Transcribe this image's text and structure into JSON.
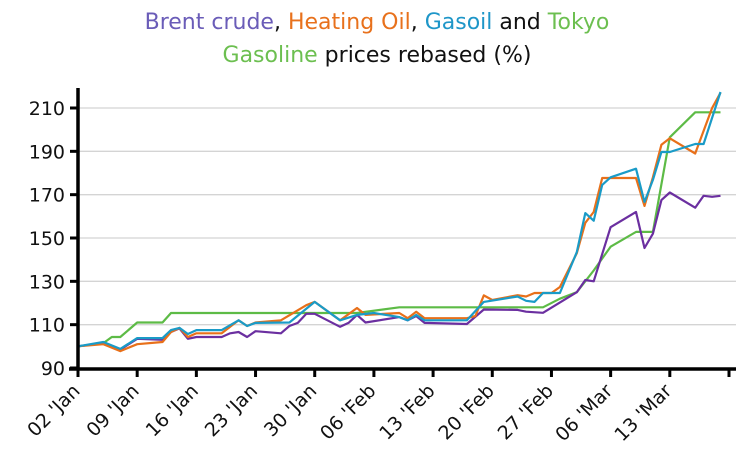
{
  "chart_data": {
    "type": "line",
    "title_parts": [
      {
        "text": "Brent crude",
        "color": "#6A5CB8"
      },
      {
        "text": ", ",
        "color": "#111111"
      },
      {
        "text": "Heating Oil",
        "color": "#E8711C"
      },
      {
        "text": ", ",
        "color": "#111111"
      },
      {
        "text": "Gasoil",
        "color": "#1E96C8"
      },
      {
        "text": " and ",
        "color": "#111111"
      },
      {
        "text": "Tokyo Gasoline",
        "color": "#6CBF50"
      },
      {
        "text": " prices rebased (%)",
        "color": "#111111"
      }
    ],
    "xlabel": "",
    "ylabel": "",
    "ylim": [
      90,
      220
    ],
    "yticks": [
      90,
      110,
      130,
      150,
      170,
      190,
      210
    ],
    "xlim": [
      "01-02",
      "03-20"
    ],
    "xticks": [
      {
        "date": "01-02",
        "label": "02 'Jan"
      },
      {
        "date": "01-09",
        "label": "09 'Jan"
      },
      {
        "date": "01-16",
        "label": "16 'Jan"
      },
      {
        "date": "01-23",
        "label": "23 'Jan"
      },
      {
        "date": "01-30",
        "label": "30 'Jan"
      },
      {
        "date": "02-06",
        "label": "06 'Feb"
      },
      {
        "date": "02-13",
        "label": "13 'Feb"
      },
      {
        "date": "02-20",
        "label": "20 'Feb"
      },
      {
        "date": "02-27",
        "label": "27 'Feb"
      },
      {
        "date": "03-06",
        "label": "06 'Mar"
      },
      {
        "date": "03-13",
        "label": "13 'Mar"
      },
      {
        "date": "03-20",
        "label": ""
      }
    ],
    "grid": "horizontal",
    "legend": "none (series named in title)",
    "series": [
      {
        "name": "Tokyo Gasoline",
        "color": "#5DBB46",
        "points": [
          [
            "01-02",
            100
          ],
          [
            "01-05",
            101.5
          ],
          [
            "01-06",
            104.3
          ],
          [
            "01-07",
            104.3
          ],
          [
            "01-09",
            111
          ],
          [
            "01-12",
            111
          ],
          [
            "01-13",
            115.4
          ],
          [
            "02-04",
            115.4
          ],
          [
            "02-09",
            118
          ],
          [
            "02-26",
            118
          ],
          [
            "02-28",
            122
          ],
          [
            "03-02",
            125
          ],
          [
            "03-04",
            135
          ],
          [
            "03-06",
            146
          ],
          [
            "03-09",
            152.8
          ],
          [
            "03-11",
            152.8
          ],
          [
            "03-13",
            196.5
          ],
          [
            "03-16",
            208
          ],
          [
            "03-19",
            208
          ]
        ]
      },
      {
        "name": "Brent crude",
        "color": "#6B2FA0",
        "points": [
          [
            "01-02",
            100
          ],
          [
            "01-05",
            101.5
          ],
          [
            "01-07",
            98.5
          ],
          [
            "01-09",
            103.5
          ],
          [
            "01-12",
            103
          ],
          [
            "01-13",
            106.6
          ],
          [
            "01-14",
            108.3
          ],
          [
            "01-15",
            103.5
          ],
          [
            "01-16",
            104.3
          ],
          [
            "01-19",
            104.3
          ],
          [
            "01-20",
            106
          ],
          [
            "01-21",
            106.6
          ],
          [
            "01-22",
            104.3
          ],
          [
            "01-23",
            107
          ],
          [
            "01-26",
            106
          ],
          [
            "01-27",
            109.4
          ],
          [
            "01-28",
            110.8
          ],
          [
            "01-29",
            115
          ],
          [
            "01-30",
            115
          ],
          [
            "02-02",
            109
          ],
          [
            "02-03",
            110.8
          ],
          [
            "02-04",
            114.5
          ],
          [
            "02-05",
            111
          ],
          [
            "02-09",
            113.5
          ],
          [
            "02-10",
            112
          ],
          [
            "02-11",
            114
          ],
          [
            "02-12",
            110.8
          ],
          [
            "02-17",
            110.3
          ],
          [
            "02-19",
            117
          ],
          [
            "02-23",
            116.8
          ],
          [
            "02-24",
            116
          ],
          [
            "02-26",
            115.5
          ],
          [
            "03-02",
            125
          ],
          [
            "03-03",
            130.6
          ],
          [
            "03-04",
            130
          ],
          [
            "03-06",
            155
          ],
          [
            "03-09",
            162
          ],
          [
            "03-10",
            145.4
          ],
          [
            "03-11",
            152
          ],
          [
            "03-12",
            167.5
          ],
          [
            "03-13",
            171
          ],
          [
            "03-16",
            164
          ],
          [
            "03-17",
            169.5
          ],
          [
            "03-18",
            169
          ],
          [
            "03-19",
            169.5
          ]
        ]
      },
      {
        "name": "Heating Oil",
        "color": "#E8701A",
        "points": [
          [
            "01-02",
            100
          ],
          [
            "01-05",
            101
          ],
          [
            "01-07",
            97.8
          ],
          [
            "01-09",
            101
          ],
          [
            "01-12",
            102
          ],
          [
            "01-13",
            106.6
          ],
          [
            "01-14",
            108.5
          ],
          [
            "01-15",
            104.3
          ],
          [
            "01-16",
            106
          ],
          [
            "01-19",
            106
          ],
          [
            "01-21",
            112
          ],
          [
            "01-22",
            109.4
          ],
          [
            "01-23",
            111
          ],
          [
            "01-26",
            112
          ],
          [
            "01-29",
            119
          ],
          [
            "01-30",
            120.5
          ],
          [
            "02-02",
            112
          ],
          [
            "02-04",
            117.7
          ],
          [
            "02-05",
            114.5
          ],
          [
            "02-09",
            115.4
          ],
          [
            "02-10",
            113
          ],
          [
            "02-11",
            116
          ],
          [
            "02-12",
            113
          ],
          [
            "02-17",
            113
          ],
          [
            "02-18",
            114
          ],
          [
            "02-19",
            123.5
          ],
          [
            "02-20",
            121.4
          ],
          [
            "02-23",
            123.6
          ],
          [
            "02-24",
            123
          ],
          [
            "02-25",
            124.6
          ],
          [
            "02-27",
            124.6
          ],
          [
            "02-28",
            127.4
          ],
          [
            "03-02",
            143
          ],
          [
            "03-03",
            157
          ],
          [
            "03-04",
            162
          ],
          [
            "03-05",
            177.7
          ],
          [
            "03-09",
            177.7
          ],
          [
            "03-10",
            164.8
          ],
          [
            "03-11",
            178
          ],
          [
            "03-12",
            193
          ],
          [
            "03-13",
            196
          ],
          [
            "03-16",
            189
          ],
          [
            "03-18",
            210
          ],
          [
            "03-19",
            217
          ]
        ]
      },
      {
        "name": "Gasoil",
        "color": "#1A9BC7",
        "points": [
          [
            "01-02",
            100
          ],
          [
            "01-05",
            102
          ],
          [
            "01-07",
            98.8
          ],
          [
            "01-09",
            103.8
          ],
          [
            "01-12",
            103.8
          ],
          [
            "01-13",
            107.5
          ],
          [
            "01-14",
            108.5
          ],
          [
            "01-15",
            105.7
          ],
          [
            "01-16",
            107.5
          ],
          [
            "01-19",
            107.5
          ],
          [
            "01-21",
            112
          ],
          [
            "01-22",
            109.4
          ],
          [
            "01-23",
            110.8
          ],
          [
            "01-27",
            111
          ],
          [
            "01-30",
            120.5
          ],
          [
            "02-02",
            112
          ],
          [
            "02-04",
            114.5
          ],
          [
            "02-06",
            115.4
          ],
          [
            "02-09",
            113.5
          ],
          [
            "02-10",
            112
          ],
          [
            "02-11",
            114.5
          ],
          [
            "02-12",
            112
          ],
          [
            "02-17",
            112
          ],
          [
            "02-19",
            120.5
          ],
          [
            "02-23",
            123
          ],
          [
            "02-24",
            121
          ],
          [
            "02-25",
            120.5
          ],
          [
            "02-26",
            124.6
          ],
          [
            "02-28",
            124.6
          ],
          [
            "03-02",
            143.5
          ],
          [
            "03-03",
            161.5
          ],
          [
            "03-04",
            158
          ],
          [
            "03-05",
            174.5
          ],
          [
            "03-06",
            178
          ],
          [
            "03-09",
            182
          ],
          [
            "03-10",
            166.6
          ],
          [
            "03-11",
            176.8
          ],
          [
            "03-12",
            189.7
          ],
          [
            "03-13",
            189.7
          ],
          [
            "03-16",
            193.4
          ],
          [
            "03-17",
            193.4
          ],
          [
            "03-19",
            217.4
          ]
        ]
      }
    ]
  }
}
